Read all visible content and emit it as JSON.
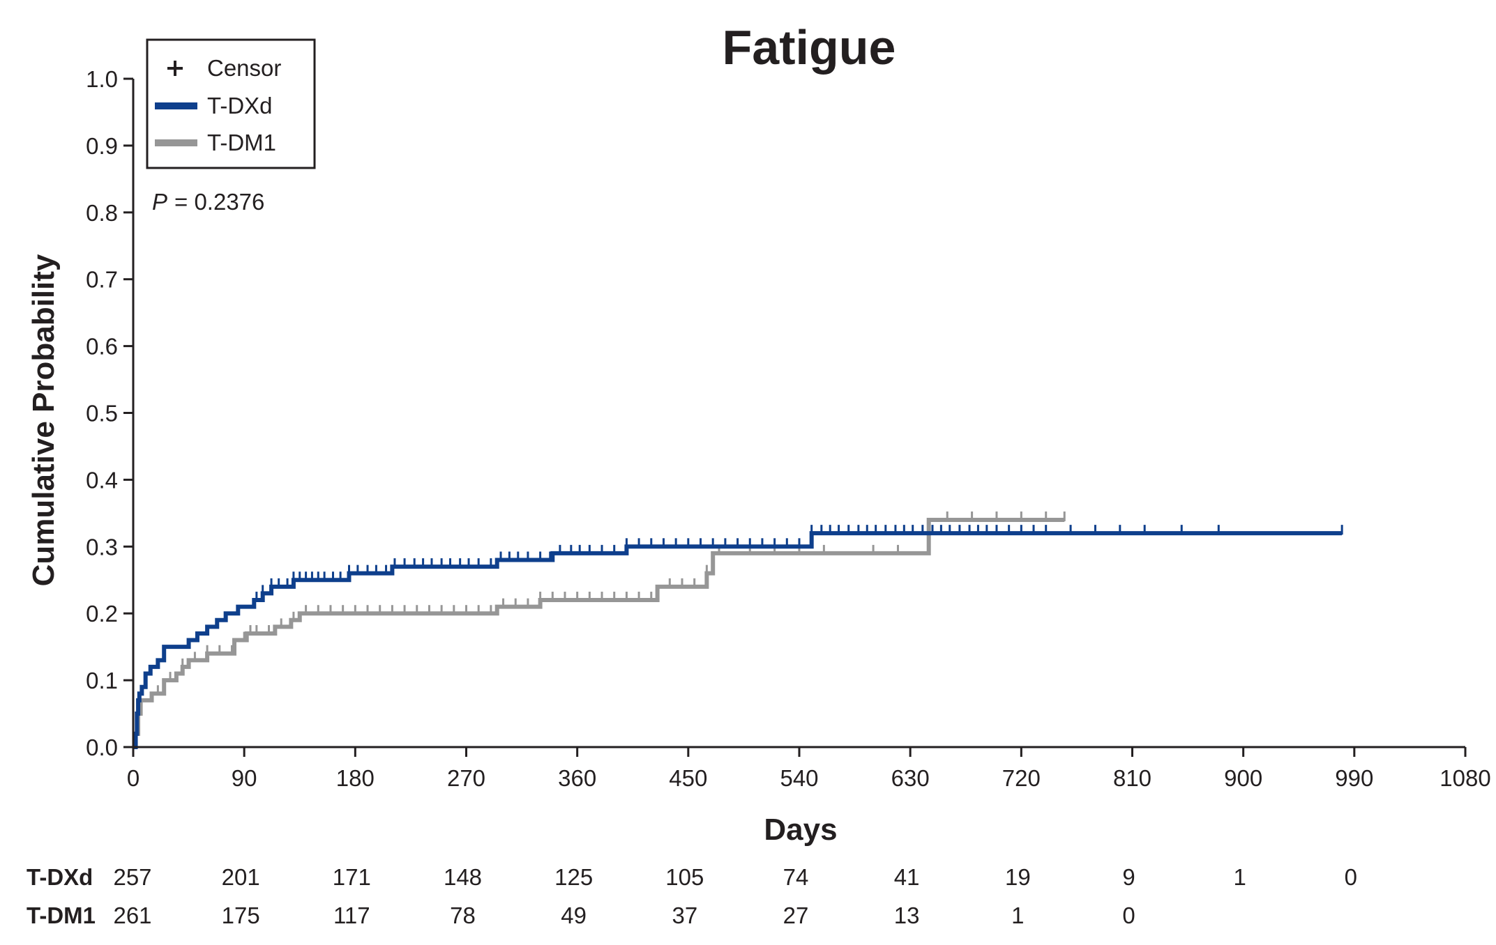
{
  "chart_data": {
    "type": "line",
    "title": "Fatigue",
    "xlabel": "Days",
    "ylabel": "Cumulative Probability",
    "xlim": [
      0,
      1080
    ],
    "ylim": [
      0,
      1.0
    ],
    "x_ticks": [
      0,
      90,
      180,
      270,
      360,
      450,
      540,
      630,
      720,
      810,
      900,
      990,
      1080
    ],
    "y_ticks": [
      "0.0",
      "0.1",
      "0.2",
      "0.3",
      "0.4",
      "0.5",
      "0.6",
      "0.7",
      "0.8",
      "0.9",
      "1.0"
    ],
    "grid": false,
    "legend": {
      "placement": "top-left",
      "entries": [
        {
          "label": "Censor",
          "marker": "+"
        },
        {
          "label": "T-DXd",
          "color": "#0e3f8c"
        },
        {
          "label": "T-DM1",
          "color": "#969696"
        }
      ]
    },
    "annotation": {
      "p_label": "P",
      "p_value": "= 0.2376"
    },
    "series": [
      {
        "name": "T-DXd",
        "color": "#0e3f8c",
        "points": [
          [
            0,
            0
          ],
          [
            2,
            0.02
          ],
          [
            3,
            0.05
          ],
          [
            4,
            0.07
          ],
          [
            5,
            0.08
          ],
          [
            7,
            0.09
          ],
          [
            10,
            0.11
          ],
          [
            14,
            0.12
          ],
          [
            20,
            0.13
          ],
          [
            25,
            0.15
          ],
          [
            45,
            0.16
          ],
          [
            52,
            0.17
          ],
          [
            60,
            0.18
          ],
          [
            68,
            0.19
          ],
          [
            75,
            0.2
          ],
          [
            85,
            0.21
          ],
          [
            98,
            0.22
          ],
          [
            105,
            0.23
          ],
          [
            112,
            0.24
          ],
          [
            130,
            0.25
          ],
          [
            160,
            0.25
          ],
          [
            175,
            0.26
          ],
          [
            210,
            0.27
          ],
          [
            295,
            0.28
          ],
          [
            340,
            0.29
          ],
          [
            400,
            0.3
          ],
          [
            550,
            0.32
          ],
          [
            980,
            0.32
          ]
        ],
        "censor_x": [
          100,
          105,
          112,
          118,
          125,
          130,
          135,
          140,
          145,
          150,
          155,
          162,
          168,
          175,
          182,
          190,
          197,
          205,
          212,
          220,
          228,
          235,
          242,
          250,
          257,
          265,
          272,
          280,
          290,
          298,
          305,
          312,
          320,
          330,
          338,
          346,
          355,
          362,
          370,
          380,
          390,
          400,
          410,
          420,
          430,
          440,
          450,
          460,
          470,
          480,
          490,
          500,
          510,
          520,
          530,
          540,
          550,
          558,
          565,
          572,
          580,
          588,
          595,
          602,
          610,
          618,
          625,
          632,
          640,
          648,
          655,
          662,
          670,
          678,
          685,
          692,
          700,
          710,
          720,
          730,
          740,
          760,
          780,
          800,
          820,
          850,
          880,
          980
        ]
      },
      {
        "name": "T-DM1",
        "color": "#969696",
        "points": [
          [
            0,
            0
          ],
          [
            2,
            0.02
          ],
          [
            4,
            0.05
          ],
          [
            6,
            0.07
          ],
          [
            15,
            0.08
          ],
          [
            25,
            0.1
          ],
          [
            35,
            0.11
          ],
          [
            40,
            0.12
          ],
          [
            45,
            0.13
          ],
          [
            60,
            0.14
          ],
          [
            82,
            0.16
          ],
          [
            92,
            0.17
          ],
          [
            115,
            0.18
          ],
          [
            128,
            0.19
          ],
          [
            135,
            0.2
          ],
          [
            295,
            0.21
          ],
          [
            330,
            0.22
          ],
          [
            425,
            0.24
          ],
          [
            465,
            0.26
          ],
          [
            470,
            0.29
          ],
          [
            645,
            0.34
          ],
          [
            755,
            0.34
          ]
        ],
        "censor_x": [
          20,
          30,
          40,
          50,
          60,
          70,
          80,
          90,
          95,
          100,
          110,
          120,
          130,
          140,
          150,
          160,
          170,
          180,
          190,
          200,
          210,
          220,
          230,
          240,
          250,
          260,
          270,
          280,
          290,
          300,
          310,
          320,
          330,
          340,
          350,
          360,
          370,
          380,
          390,
          400,
          410,
          420,
          435,
          445,
          455,
          465,
          475,
          500,
          520,
          540,
          560,
          600,
          620,
          660,
          680,
          700,
          720,
          740,
          755
        ]
      }
    ],
    "at_risk": {
      "days": [
        0,
        90,
        180,
        270,
        360,
        450,
        540,
        630,
        720,
        810,
        900,
        990
      ],
      "rows": [
        {
          "label": "T-DXd",
          "values": [
            "257",
            "201",
            "171",
            "148",
            "125",
            "105",
            "74",
            "41",
            "19",
            "9",
            "1",
            "0"
          ]
        },
        {
          "label": "T-DM1",
          "values": [
            "261",
            "175",
            "117",
            "78",
            "49",
            "37",
            "27",
            "13",
            "1",
            "0"
          ]
        }
      ]
    }
  }
}
